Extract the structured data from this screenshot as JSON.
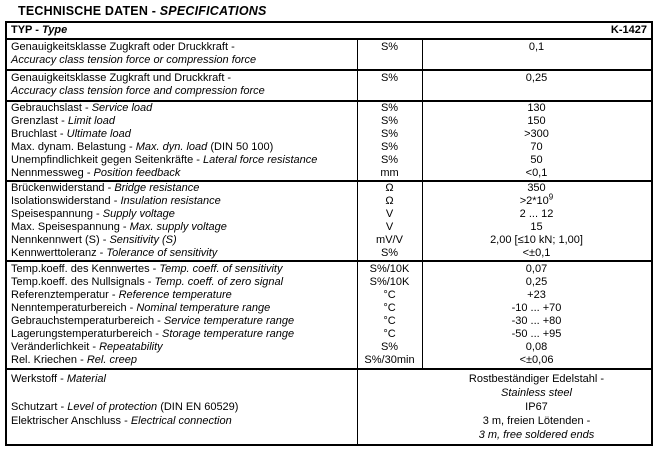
{
  "title": {
    "de": "TECHNISCHE DATEN - ",
    "en": "SPECIFICATIONS"
  },
  "header": {
    "de": "TYP - ",
    "en": "Type",
    "value": "K-1427"
  },
  "table": {
    "groups": [
      {
        "style": "tall",
        "rows": [
          {
            "de": "Genauigkeitsklasse Zugkraft oder Druckkraft -",
            "en": "Accuracy class tension force or compression force",
            "unit": "S%",
            "value": "0,1"
          }
        ]
      },
      {
        "style": "tall",
        "rows": [
          {
            "de": "Genauigkeitsklasse Zugkraft und Druckkraft -",
            "en": "Accuracy class tension force and compression force",
            "unit": "S%",
            "value": "0,25"
          }
        ]
      },
      {
        "style": "",
        "rows": [
          {
            "de": "Gebrauchslast -",
            "en": "Service load",
            "unit": "S%",
            "value": "130"
          },
          {
            "de": "Grenzlast -",
            "en": "Limit load",
            "unit": "S%",
            "value": "150"
          },
          {
            "de": "Bruchlast -",
            "en": "Ultimate load",
            "unit": "S%",
            "value": ">300"
          },
          {
            "de": "Max. dynam. Belastung -",
            "en": "Max. dyn. load",
            "suffix": "(DIN 50 100)",
            "unit": "S%",
            "value": "70"
          },
          {
            "de": "Unempfindlichkeit gegen Seitenkräfte -",
            "en": "Lateral force resistance",
            "unit": "S%",
            "value": "50"
          },
          {
            "de": "Nennmessweg -",
            "en": "Position feedback",
            "unit": "mm",
            "value": "<0,1"
          }
        ]
      },
      {
        "style": "",
        "rows": [
          {
            "de": "Brückenwiderstand -",
            "en": "Bridge resistance",
            "unit": "Ω",
            "value": "350"
          },
          {
            "de": "Isolationswiderstand -",
            "en": "Insulation resistance",
            "unit": "Ω",
            "value": ">2*10",
            "value_sup": "9"
          },
          {
            "de": "Speisespannung -",
            "en": "Supply voltage",
            "unit": "V",
            "value": "2 ... 12"
          },
          {
            "de": "Max. Speisespannung -",
            "en": "Max. supply voltage",
            "unit": "V",
            "value": "15"
          },
          {
            "de": "Nennkennwert (S) -",
            "en": "Sensitivity (S)",
            "unit": "mV/V",
            "value": "2,00 [≤10 kN; 1,00]"
          },
          {
            "de": "Kennwerttoleranz -",
            "en": "Tolerance of sensitivity",
            "unit": "S%",
            "value": "<±0,1"
          }
        ]
      },
      {
        "style": "pad",
        "rows": [
          {
            "de": "Temp.koeff. des Kennwertes -",
            "en": "Temp. coeff. of sensitivity",
            "unit": "S%/10K",
            "value": "0,07"
          },
          {
            "de": "Temp.koeff. des Nullsignals -",
            "en": "Temp. coeff. of zero signal",
            "unit": "S%/10K",
            "value": "0,25"
          },
          {
            "de": "Referenztemperatur -",
            "en": "Reference temperature",
            "unit": "°C",
            "value": "+23"
          },
          {
            "de": "Nenntemperaturbereich -",
            "en": "Nominal temperature range",
            "unit": "°C",
            "value": "-10 ... +70"
          },
          {
            "de": "Gebrauchstemperaturbereich -",
            "en": "Service temperature range",
            "unit": "°C",
            "value": "-30 ... +80"
          },
          {
            "de": "Lagerungstemperaturbereich -",
            "en": "Storage temperature range",
            "unit": "°C",
            "value": "-50 ... +95"
          },
          {
            "de": "Veränderlichkeit -",
            "en": "Repeatability",
            "unit": "S%",
            "value": "0,08"
          },
          {
            "de": "Rel. Kriechen -",
            "en": "Rel. creep",
            "unit": "S%/30min",
            "value": "<±0,06"
          }
        ]
      }
    ]
  },
  "material_section": {
    "label_lines": [
      {
        "de": "Werkstoff -",
        "en": "Material",
        "suffix": ""
      },
      {
        "de": "",
        "en": "",
        "suffix": ""
      },
      {
        "de": "Schutzart -",
        "en": "Level of protection",
        "suffix": "(DIN EN 60529)"
      },
      {
        "de": "Elektrischer Anschluss -",
        "en": "Electrical connection",
        "suffix": ""
      }
    ],
    "value_lines": [
      {
        "text": "Rostbeständiger Edelstahl -",
        "italic": false
      },
      {
        "text": "Stainless steel",
        "italic": true
      },
      {
        "text": "IP67",
        "italic": false
      },
      {
        "text": "3 m, freien Lötenden -",
        "italic": false
      },
      {
        "text": "3 m, free soldered ends",
        "italic": true
      }
    ]
  }
}
